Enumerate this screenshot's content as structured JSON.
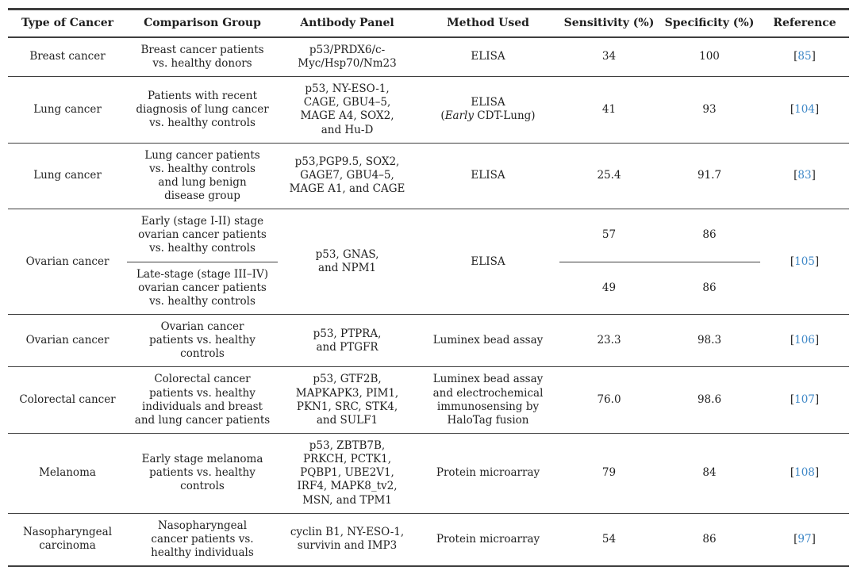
{
  "colors": {
    "text": "#1f1f1f",
    "line": "#3f3f3f",
    "reference_link": "#3c86c6",
    "background": "#ffffff"
  },
  "table": {
    "headers": [
      "Type of Cancer",
      "Comparison Group",
      "Antibody Panel",
      "Method Used",
      "Sensitivity (%)",
      "Specificity (%)",
      "Reference"
    ],
    "reference_brackets": {
      "open": "[",
      "close": "]"
    },
    "rows": [
      {
        "type": "Breast cancer",
        "comparison": "Breast cancer patients\nvs. healthy donors",
        "antibody": "p53/PRDX6/c-\nMyc/Hsp70/Nm23",
        "method": "ELISA",
        "sensitivity": "34",
        "specificity": "100",
        "ref": "85"
      },
      {
        "type": "Lung cancer",
        "comparison": "Patients with recent\ndiagnosis of lung cancer\nvs. healthy controls",
        "antibody": "p53, NY-ESO-1,\nCAGE, GBU4–5,\nMAGE A4, SOX2,\nand Hu-D",
        "method": "ELISA",
        "method_note_open": "(",
        "method_note_italic": "Early",
        "method_note_rest": " CDT-Lung)",
        "sensitivity": "41",
        "specificity": "93",
        "ref": "104"
      },
      {
        "type": "Lung cancer",
        "comparison": "Lung cancer patients\nvs. healthy controls\nand lung benign\ndisease group",
        "antibody": "p53,PGP9.5, SOX2,\nGAGE7, GBU4–5,\nMAGE A1, and CAGE",
        "method": "ELISA",
        "sensitivity": "25.4",
        "specificity": "91.7",
        "ref": "83"
      },
      {
        "type": "Ovarian cancer",
        "antibody": "p53, GNAS,\nand NPM1",
        "method": "ELISA",
        "ref": "105",
        "sub_rows": [
          {
            "comparison": "Early (stage I-II) stage\novarian cancer patients\nvs. healthy controls",
            "sensitivity": "57",
            "specificity": "86"
          },
          {
            "comparison": "Late-stage (stage III–IV)\novarian cancer patients\nvs. healthy controls",
            "sensitivity": "49",
            "specificity": "86"
          }
        ]
      },
      {
        "type": "Ovarian cancer",
        "comparison": "Ovarian cancer\npatients vs. healthy\ncontrols",
        "antibody": "p53, PTPRA,\nand PTGFR",
        "method": "Luminex bead assay",
        "sensitivity": "23.3",
        "specificity": "98.3",
        "ref": "106"
      },
      {
        "type": "Colorectal cancer",
        "comparison": "Colorectal cancer\npatients vs. healthy\nindividuals and breast\nand lung cancer patients",
        "antibody": "p53, GTF2B,\nMAPKAPK3, PIM1,\nPKN1, SRC, STK4,\nand SULF1",
        "method": "Luminex bead assay\nand electrochemical\nimmunosensing by\nHaloTag fusion",
        "sensitivity": "76.0",
        "specificity": "98.6",
        "ref": "107"
      },
      {
        "type": "Melanoma",
        "comparison": "Early stage melanoma\npatients vs. healthy\ncontrols",
        "antibody": "p53, ZBTB7B,\nPRKCH, PCTK1,\nPQBP1, UBE2V1,\nIRF4, MAPK8_tv2,\nMSN, and TPM1",
        "method": "Protein microarray",
        "sensitivity": "79",
        "specificity": "84",
        "ref": "108"
      },
      {
        "type": "Nasopharyngeal\ncarcinoma",
        "comparison": "Nasopharyngeal\ncancer patients vs.\nhealthy individuals",
        "antibody": "cyclin B1, NY-ESO-1,\nsurvivin and IMP3",
        "method": "Protein microarray",
        "sensitivity": "54",
        "specificity": "86",
        "ref": "97"
      }
    ]
  }
}
